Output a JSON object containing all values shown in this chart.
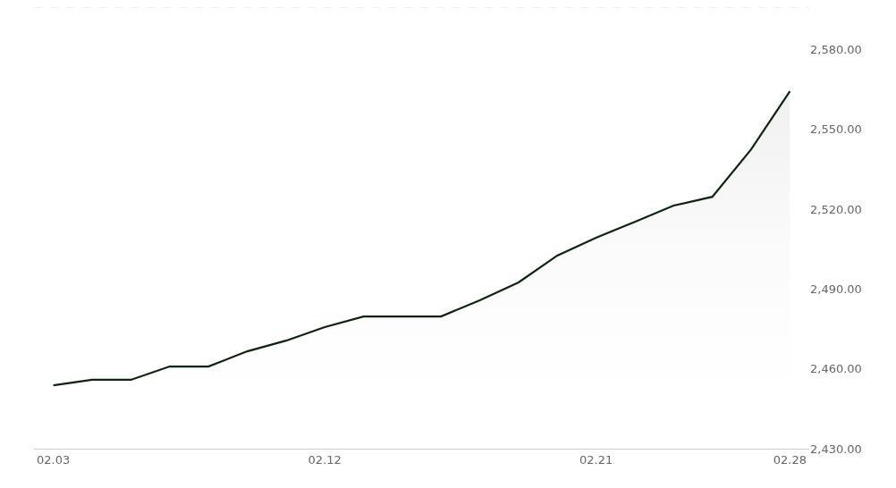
{
  "chart_data": {
    "type": "area",
    "categories": [
      "02.03",
      null,
      null,
      null,
      null,
      null,
      null,
      "02.12",
      null,
      null,
      null,
      null,
      null,
      null,
      "02.21",
      null,
      null,
      null,
      null,
      "02.28"
    ],
    "values": [
      2453.8,
      2455.9,
      2455.9,
      2460.9,
      2460.9,
      2466.6,
      2470.6,
      2475.7,
      2479.7,
      2479.7,
      2479.7,
      2485.8,
      2492.5,
      2502.6,
      2509.3,
      2515.3,
      2521.4,
      2524.7,
      2542.5,
      2564.4
    ],
    "color": "#0f2410",
    "ylim": [
      2430,
      2596
    ],
    "yticks": [
      {
        "value": 2430,
        "label": "2,430.00"
      },
      {
        "value": 2460,
        "label": "2,460.00"
      },
      {
        "value": 2490,
        "label": "2,490.00"
      },
      {
        "value": 2520,
        "label": "2,520.00"
      },
      {
        "value": 2550,
        "label": "2,550.00"
      },
      {
        "value": 2580,
        "label": "2,580.00"
      }
    ]
  }
}
